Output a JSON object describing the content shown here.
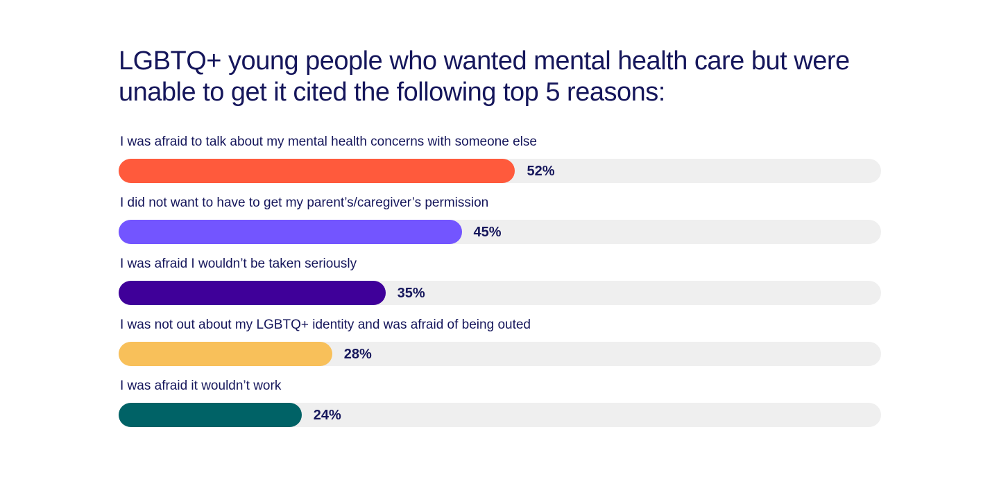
{
  "chart_data": {
    "type": "bar",
    "orientation": "horizontal",
    "title": "LGBTQ+ young people who wanted mental health care but were unable to get it cited the following top 5 reasons:",
    "xlabel": "",
    "ylabel": "",
    "xlim": [
      0,
      100
    ],
    "grid": false,
    "legend": "none",
    "track_color": "#efefef",
    "categories": [
      "I was afraid to talk about my mental health concerns with someone else",
      "I did not want to have to get my parent’s/caregiver’s permission",
      "I was afraid I wouldn’t be taken seriously",
      "I was not out about my LGBTQ+ identity and was afraid of being outed",
      "I was afraid it wouldn’t work"
    ],
    "values": [
      52,
      45,
      35,
      28,
      24
    ],
    "value_labels": [
      "52%",
      "45%",
      "35%",
      "28%",
      "24%"
    ],
    "colors": [
      "#ff5a3c",
      "#7355ff",
      "#3f0099",
      "#f8c05a",
      "#006266"
    ]
  }
}
